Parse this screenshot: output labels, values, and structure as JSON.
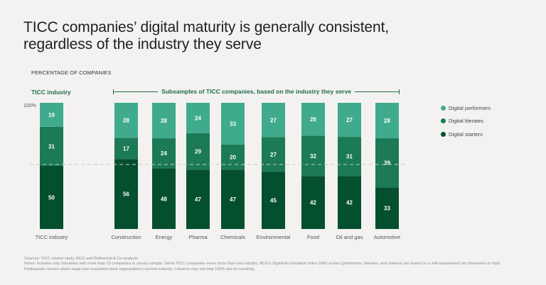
{
  "header": {
    "title": "TICC companies’ digital maturity is generally consistent, regardless of the industry they serve",
    "subtitle": "PERCENTAGE OF COMPANIES"
  },
  "groups": {
    "left_label": "TICC industry",
    "right_label": "Subsamples of TICC companies, based on the industry they serve"
  },
  "legend": {
    "items": [
      {
        "label": "Digital performers",
        "color": "#3fab8c"
      },
      {
        "label": "Digital literates",
        "color": "#1c7a56"
      },
      {
        "label": "Digital starters",
        "color": "#044f2e"
      }
    ]
  },
  "footnote": {
    "sources": "Sources: TICC market study; BCG and Rothschild & Co analysis.",
    "notes": "Notes: Includes only industries with more than 15 companies in survey sample. Some TICC companies serve more than one industry. BCG’s Digital Acceleration Index (DAI) scores (performers, literates, and starters) are based on a self-assessment per dimension or topic. Participants choose which stage best resembles their organization’s current maturity. Columns may not total 100% due to rounding."
  },
  "chart_data": {
    "type": "bar",
    "stacked": true,
    "title": "TICC companies’ digital maturity is generally consistent, regardless of the industry they serve",
    "ylabel": "PERCENTAGE OF COMPANIES",
    "xlabel": "",
    "ylim": [
      0,
      100
    ],
    "y_tick_labels": [
      "100%"
    ],
    "reference_line": {
      "value": 50,
      "style": "dashed"
    },
    "grid": false,
    "legend_position": "right",
    "categories": [
      "TICC industry",
      "Construction",
      "Energy",
      "Pharma",
      "Chemicals",
      "Environmental",
      "Food",
      "Oil and gas",
      "Automotive"
    ],
    "series": [
      {
        "name": "Digital starters",
        "color": "#044f2e",
        "values": [
          50,
          56,
          48,
          47,
          47,
          45,
          42,
          42,
          33
        ]
      },
      {
        "name": "Digital literates",
        "color": "#1c7a56",
        "values": [
          31,
          17,
          24,
          29,
          20,
          27,
          32,
          31,
          39
        ]
      },
      {
        "name": "Digital performers",
        "color": "#3fab8c",
        "values": [
          19,
          28,
          28,
          24,
          33,
          27,
          26,
          27,
          28
        ]
      }
    ]
  }
}
